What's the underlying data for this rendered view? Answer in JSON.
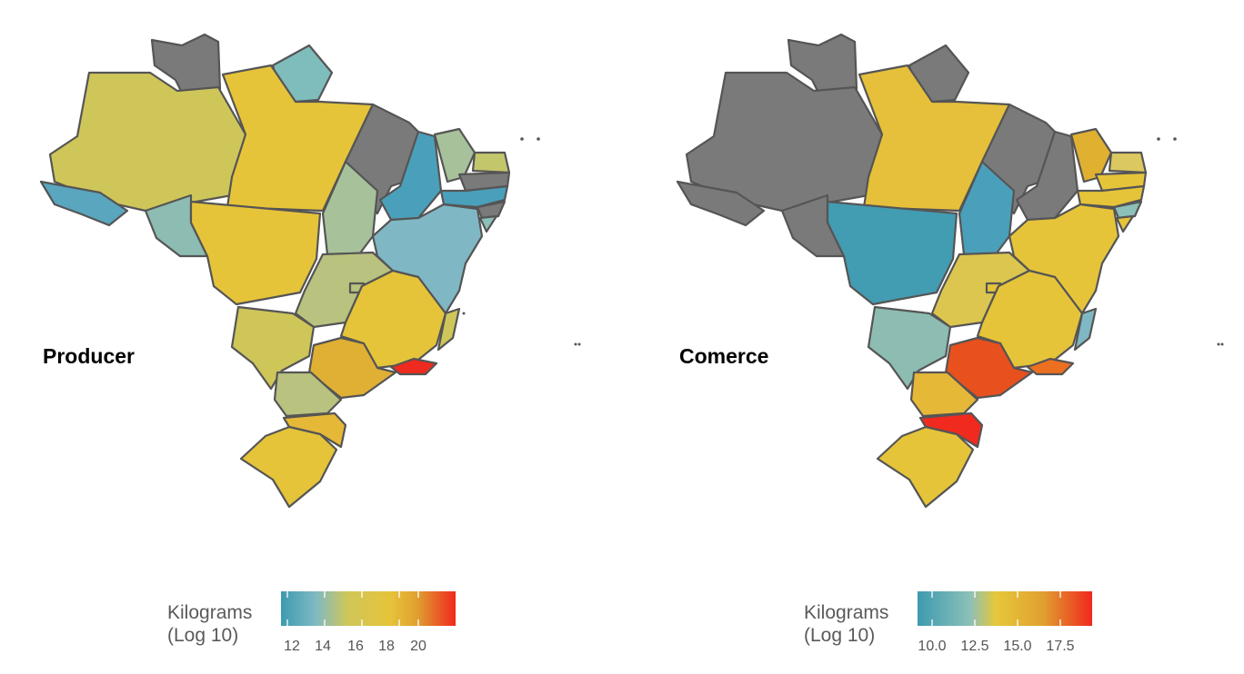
{
  "colors": {
    "no_data": "#7a7a7a",
    "border": "#555555",
    "scale": [
      "#3d9ab0",
      "#8cc0b8",
      "#e6c83a",
      "#e0a030",
      "#f0281e"
    ]
  },
  "panels": [
    {
      "label": "Producer",
      "legend": {
        "title_line1": "Kilograms",
        "title_line2": "(Log 10)",
        "ticks": [
          "12",
          "14",
          "16",
          "18",
          "20"
        ]
      }
    },
    {
      "label": "Comerce",
      "legend": {
        "title_line1": "Kilograms",
        "title_line2": "(Log 10)",
        "ticks": [
          "10.0",
          "12.5",
          "15.0",
          "17.5"
        ]
      }
    }
  ]
}
